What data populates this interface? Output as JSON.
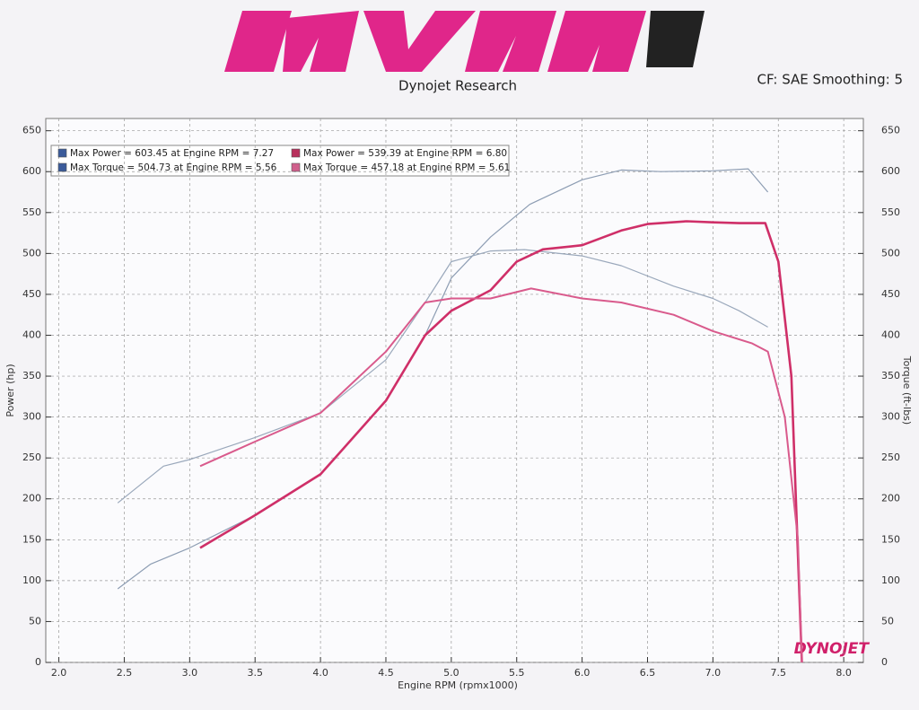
{
  "header": {
    "title": "Dynojet Research",
    "settings": "CF: SAE Smoothing: 5",
    "watermark": "DYNOJET"
  },
  "chart_data": {
    "type": "line",
    "xlabel": "Engine RPM (rpmx1000)",
    "ylabel": "Power (hp)",
    "y2label": "Torque (ft-lbs)",
    "xlim": [
      1.9,
      8.15
    ],
    "ylim": [
      0,
      665
    ],
    "y2lim": [
      0,
      665
    ],
    "xticks": [
      {
        "value": 2,
        "label": "2.0"
      },
      2.5,
      {
        "value": 3,
        "label": "3.0"
      },
      3.5,
      {
        "value": 4,
        "label": "4.0"
      },
      4.5,
      {
        "value": 5,
        "label": "5.0"
      },
      5.5,
      {
        "value": 6,
        "label": "6.0"
      },
      6.5,
      {
        "value": 7,
        "label": "7.0"
      },
      7.5,
      {
        "value": 8,
        "label": "8.0"
      }
    ],
    "yticks": [
      0,
      50,
      100,
      150,
      200,
      250,
      300,
      350,
      400,
      450,
      500,
      550,
      600,
      650
    ],
    "y2ticks": [
      0,
      50,
      100,
      150,
      200,
      250,
      300,
      350,
      400,
      450,
      500,
      550,
      600,
      650
    ],
    "grid": true,
    "series": [
      {
        "name": "Max Power = 603.45 at Engine RPM = 7.27",
        "color": "#8d9db3",
        "legend_color": "#3b5b9a",
        "width": 1.2,
        "axis": "y",
        "x": [
          2.45,
          2.7,
          3.0,
          3.5,
          4.0,
          4.5,
          4.8,
          5.0,
          5.3,
          5.6,
          6.0,
          6.3,
          6.6,
          7.0,
          7.27,
          7.42
        ],
        "values": [
          90,
          120,
          140,
          180,
          230,
          320,
          400,
          470,
          520,
          560,
          590,
          602,
          600,
          601,
          603.45,
          575
        ]
      },
      {
        "name": "Max Torque = 504.73 at Engine RPM = 5.56",
        "color": "#9aa8bb",
        "legend_color": "#3b5b9a",
        "width": 1.2,
        "axis": "y2",
        "x": [
          2.45,
          2.8,
          3.0,
          3.5,
          4.0,
          4.5,
          4.8,
          5.0,
          5.3,
          5.56,
          6.0,
          6.3,
          6.7,
          7.0,
          7.2,
          7.42
        ],
        "values": [
          195,
          240,
          248,
          275,
          305,
          370,
          440,
          490,
          503,
          504.73,
          497,
          485,
          460,
          445,
          430,
          410
        ]
      },
      {
        "name": "Max Power = 539.39 at Engine RPM = 6.80",
        "color": "#cf2f68",
        "legend_color": "#b8305c",
        "width": 2.6,
        "axis": "y",
        "x": [
          3.08,
          3.5,
          4.0,
          4.1,
          4.5,
          4.8,
          5.0,
          5.3,
          5.5,
          5.7,
          6.0,
          6.3,
          6.5,
          6.8,
          7.0,
          7.2,
          7.4,
          7.5,
          7.6,
          7.68
        ],
        "values": [
          140,
          180,
          230,
          248,
          320,
          400,
          430,
          455,
          490,
          505,
          510,
          528,
          536,
          539.39,
          538,
          537,
          537,
          490,
          350,
          0
        ]
      },
      {
        "name": "Max Torque = 457.18 at Engine RPM = 5.61",
        "color": "#d95a8c",
        "legend_color": "#d0608c",
        "width": 2,
        "axis": "y2",
        "x": [
          3.08,
          3.5,
          4.0,
          4.5,
          4.8,
          5.0,
          5.3,
          5.61,
          6.0,
          6.3,
          6.7,
          7.0,
          7.3,
          7.42,
          7.55,
          7.65,
          7.68
        ],
        "values": [
          240,
          270,
          305,
          380,
          440,
          445,
          445,
          457.18,
          445,
          440,
          425,
          405,
          390,
          380,
          300,
          150,
          0
        ]
      }
    ]
  }
}
